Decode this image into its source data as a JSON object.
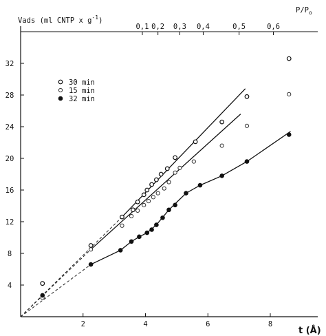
{
  "chart_data": {
    "type": "scatter",
    "ylabel": "Vads (ml CNTP x g",
    "ylabel_sup": "-1",
    "ylabel_close": ")",
    "xlabel": "t (Å)",
    "top_axis_label": "P/P",
    "top_axis_label_sub": "o",
    "xlim": [
      0,
      9.3
    ],
    "ylim": [
      0,
      36
    ],
    "x_ticks": [
      2,
      4,
      6,
      8
    ],
    "y_ticks": [
      4,
      8,
      12,
      16,
      20,
      24,
      28,
      32
    ],
    "top_ticks": [
      {
        "label": "0,1",
        "x": 3.9
      },
      {
        "label": "0,2",
        "x": 4.4
      },
      {
        "label": "0,3",
        "x": 5.1
      },
      {
        "label": "0,4",
        "x": 5.85
      },
      {
        "label": "0,5",
        "x": 7.0
      },
      {
        "label": "0,6",
        "x": 8.1
      }
    ],
    "grid": false,
    "legend": "upper-left",
    "series": [
      {
        "name": "30 min",
        "marker": "open-circle",
        "points": [
          [
            0.7,
            4.2
          ],
          [
            2.25,
            9.0
          ],
          [
            3.25,
            12.6
          ],
          [
            3.6,
            13.5
          ],
          [
            3.75,
            14.5
          ],
          [
            3.95,
            15.4
          ],
          [
            4.05,
            16.0
          ],
          [
            4.2,
            16.7
          ],
          [
            4.35,
            17.3
          ],
          [
            4.5,
            18.0
          ],
          [
            4.7,
            18.7
          ],
          [
            4.95,
            20.1
          ],
          [
            5.6,
            22.1
          ],
          [
            6.45,
            24.6
          ],
          [
            7.25,
            27.8
          ],
          [
            8.6,
            32.6
          ]
        ],
        "fit": [
          [
            3.25,
            12.6
          ],
          [
            7.2,
            28.8
          ]
        ],
        "extrapolation": [
          [
            0,
            0
          ],
          [
            3.25,
            12.6
          ]
        ]
      },
      {
        "name": "15 min",
        "marker": "open-circle-small",
        "points": [
          [
            0.7,
            2.4
          ],
          [
            2.25,
            8.5
          ],
          [
            3.25,
            11.5
          ],
          [
            3.55,
            12.7
          ],
          [
            3.75,
            13.4
          ],
          [
            3.95,
            14.1
          ],
          [
            4.1,
            14.6
          ],
          [
            4.25,
            15.1
          ],
          [
            4.4,
            15.6
          ],
          [
            4.6,
            16.2
          ],
          [
            4.75,
            17.0
          ],
          [
            4.95,
            18.2
          ],
          [
            5.1,
            18.8
          ],
          [
            5.55,
            19.6
          ],
          [
            6.45,
            21.6
          ],
          [
            7.25,
            24.1
          ],
          [
            8.6,
            28.1
          ]
        ],
        "fit": [
          [
            2.25,
            8.5
          ],
          [
            7.05,
            25.6
          ]
        ],
        "extrapolation": [
          [
            0,
            0
          ],
          [
            2.25,
            8.5
          ]
        ]
      },
      {
        "name": "32 min",
        "marker": "filled-circle",
        "points": [
          [
            0.7,
            2.7
          ],
          [
            2.25,
            6.6
          ],
          [
            3.2,
            8.4
          ],
          [
            3.55,
            9.5
          ],
          [
            3.8,
            10.1
          ],
          [
            4.05,
            10.6
          ],
          [
            4.2,
            11.0
          ],
          [
            4.35,
            11.6
          ],
          [
            4.55,
            12.5
          ],
          [
            4.75,
            13.5
          ],
          [
            4.95,
            14.1
          ],
          [
            5.3,
            15.6
          ],
          [
            5.75,
            16.6
          ],
          [
            6.45,
            17.8
          ],
          [
            7.25,
            19.6
          ],
          [
            8.6,
            23.0
          ]
        ],
        "fit": [
          [
            2.25,
            6.6
          ],
          [
            3.2,
            8.4
          ],
          [
            3.55,
            9.5
          ],
          [
            3.8,
            10.1
          ],
          [
            4.05,
            10.6
          ],
          [
            4.35,
            11.6
          ],
          [
            4.75,
            13.5
          ],
          [
            5.3,
            15.6
          ],
          [
            5.75,
            16.6
          ],
          [
            6.45,
            17.8
          ],
          [
            7.25,
            19.6
          ],
          [
            8.65,
            23.4
          ]
        ],
        "extrapolation": [
          [
            0,
            0
          ],
          [
            2.25,
            6.6
          ]
        ]
      }
    ]
  }
}
